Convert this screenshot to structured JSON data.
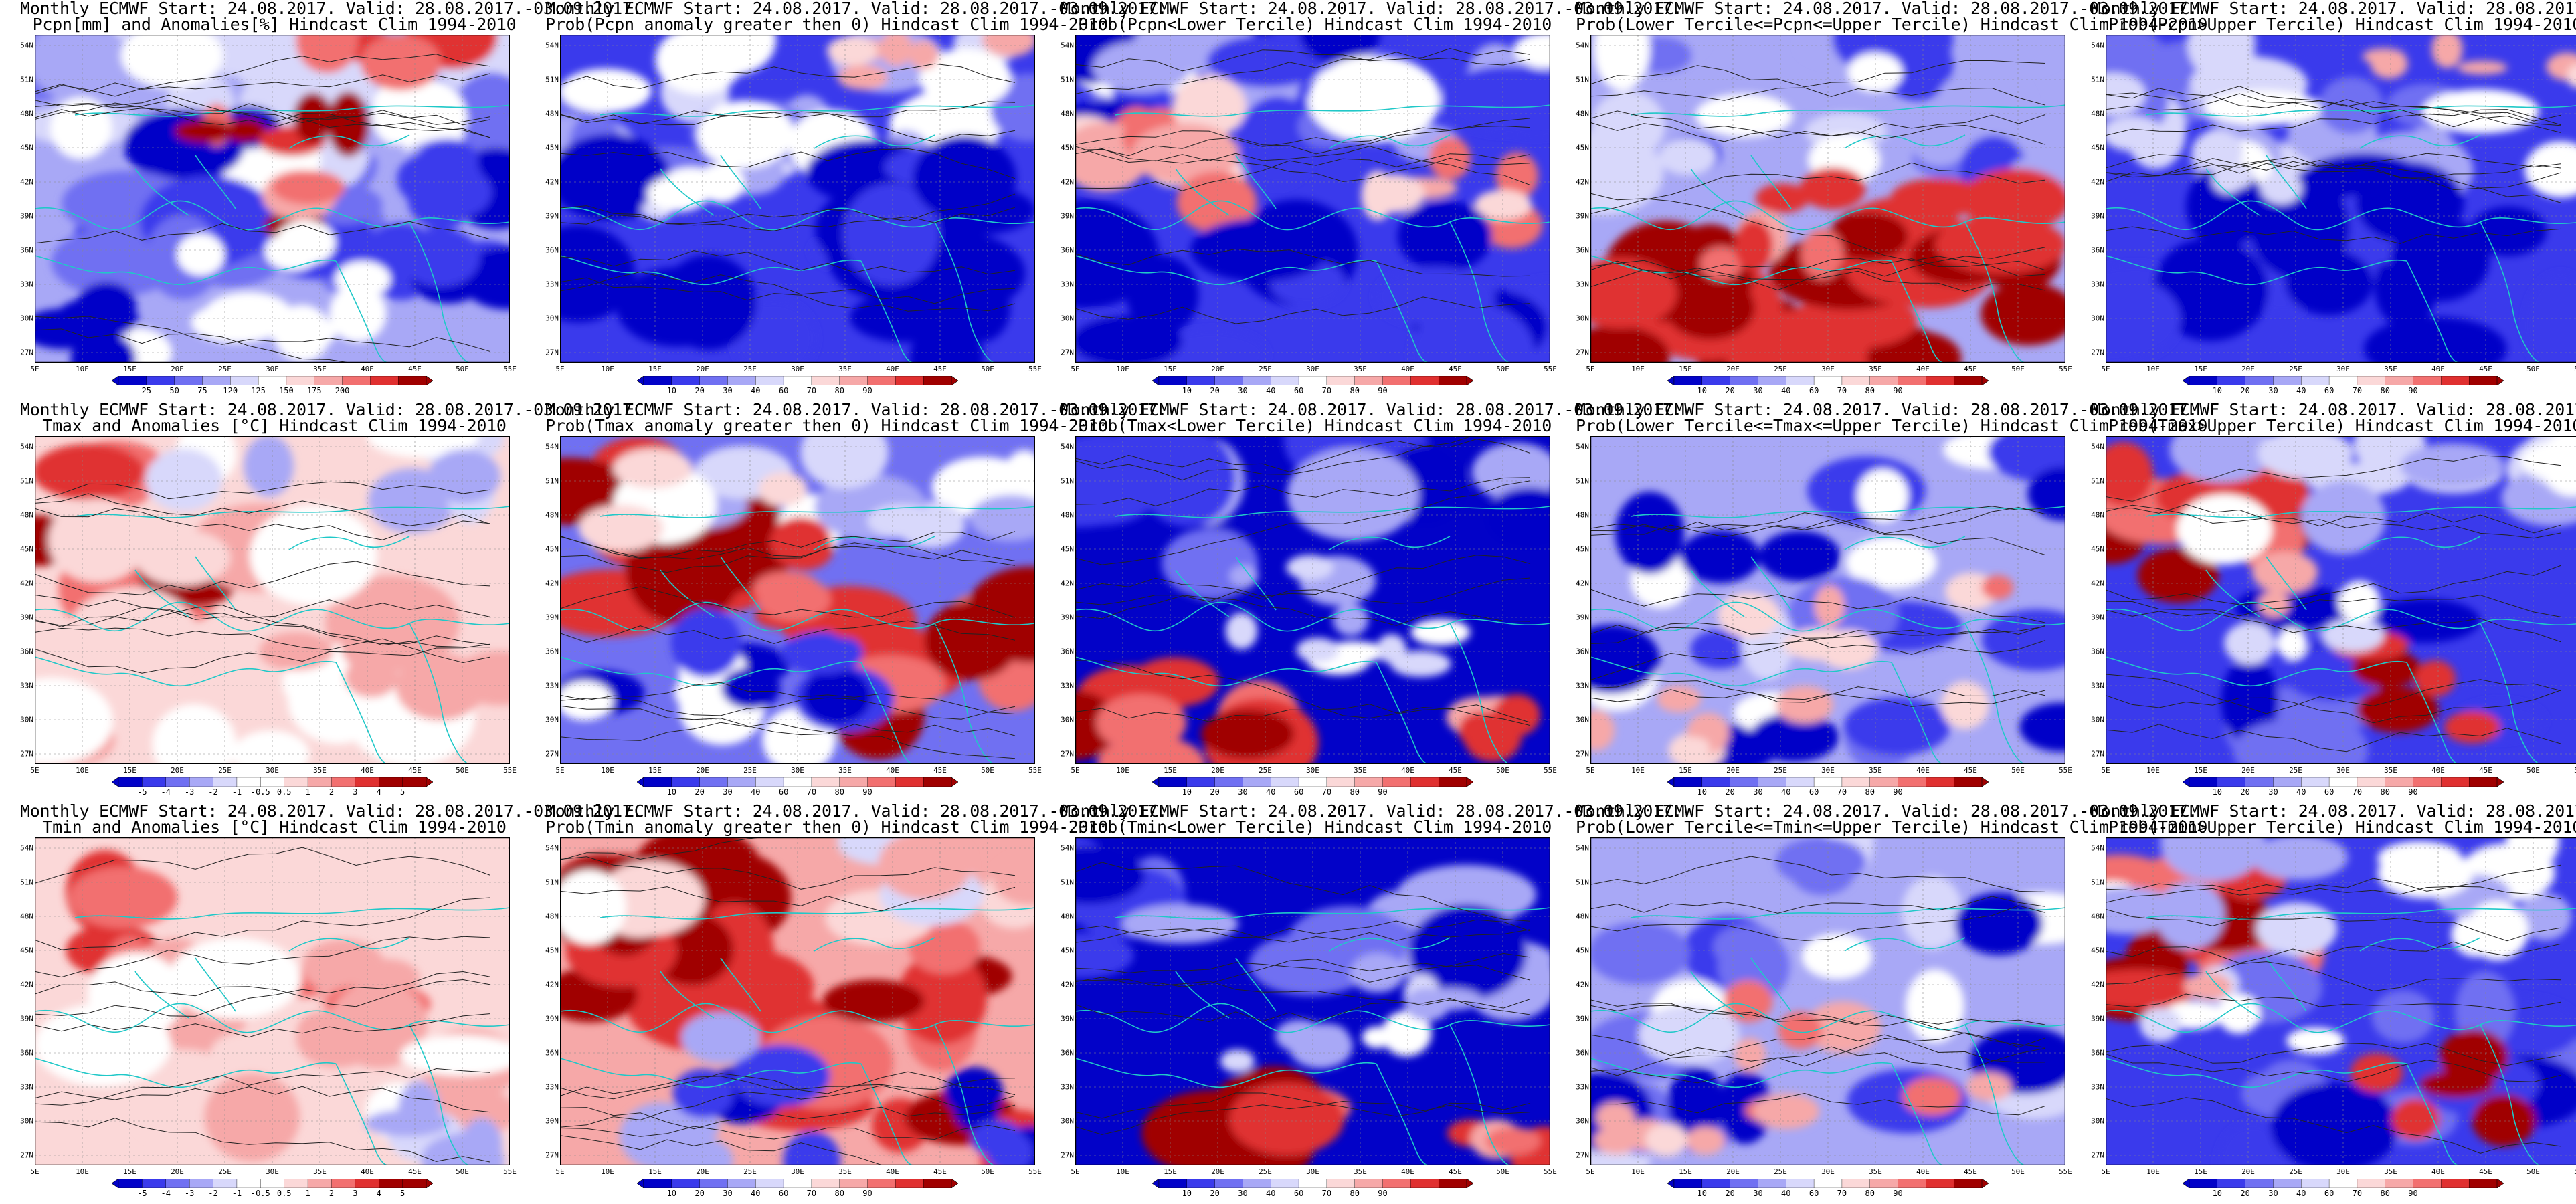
{
  "header": "Monthly ECMWF Start: 24.08.2017. Valid: 28.08.2017.-03.09.2017.",
  "lat_labels": [
    "54N",
    "51N",
    "48N",
    "45N",
    "42N",
    "39N",
    "36N",
    "33N",
    "30N",
    "27N"
  ],
  "lon_labels": [
    "5E",
    "10E",
    "15E",
    "20E",
    "25E",
    "30E",
    "35E",
    "40E",
    "45E",
    "50E",
    "55E"
  ],
  "colors": {
    "blue_dark": "#0202c8",
    "blue": "#3a3aec",
    "blue_mid": "#7070f2",
    "blue_light": "#a8a8f6",
    "blue_pale": "#d8d8fb",
    "white": "#ffffff",
    "red_pale": "#fbd8d8",
    "red_light": "#f6a8a8",
    "red_mid": "#f27070",
    "red": "#e03030",
    "red_dark": "#a00000",
    "contour": "#222222",
    "coast": "#20c8c8"
  },
  "colorbars": {
    "precip_anom": [
      "25",
      "50",
      "75",
      "120",
      "125",
      "150",
      "175",
      "200"
    ],
    "prob": [
      "10",
      "20",
      "30",
      "40",
      "60",
      "70",
      "80",
      "90"
    ],
    "temp_anom": [
      "-5",
      "-4",
      "-3",
      "-2",
      "-1",
      "-0.5",
      "0.5",
      "1",
      "2",
      "3",
      "4",
      "5"
    ]
  },
  "panels": [
    {
      "id": "r1c1",
      "row": 0,
      "col": 0,
      "subtitle": "Pcpn[mm] and Anomalies[%] Hindcast Clim 1994-2010",
      "colorbar": "precip_anom",
      "pattern": "pcpn_anom"
    },
    {
      "id": "r1c2",
      "row": 0,
      "col": 1,
      "subtitle": "Prob(Pcpn anomaly greater then 0) Hindcast Clim 1994-2010",
      "colorbar": "prob",
      "pattern": "blue_mostly"
    },
    {
      "id": "r1c3",
      "row": 0,
      "col": 2,
      "subtitle": "Prob(Pcpn<Lower Tercile) Hindcast Clim 1994-2010",
      "colorbar": "prob",
      "pattern": "pcpn_lower"
    },
    {
      "id": "r1c4",
      "row": 0,
      "col": 3,
      "subtitle": "Prob(Lower Tercile<=Pcpn<=Upper Tercile) Hindcast Clim 1994-2010",
      "colorbar": "prob",
      "pattern": "red_south"
    },
    {
      "id": "r1c5",
      "row": 0,
      "col": 4,
      "subtitle": "Prob(Pcpn>Upper Tercile) Hindcast Clim 1994-2010",
      "colorbar": "prob",
      "pattern": "blue_mostly"
    },
    {
      "id": "r2c1",
      "row": 1,
      "col": 0,
      "subtitle": "Tmax and Anomalies [°C] Hindcast Clim 1994-2010",
      "colorbar": "temp_anom",
      "pattern": "tanom"
    },
    {
      "id": "r2c2",
      "row": 1,
      "col": 1,
      "subtitle": "Prob(Tmax anomaly greater then 0) Hindcast Clim 1994-2010",
      "colorbar": "prob",
      "pattern": "red_west_east"
    },
    {
      "id": "r2c3",
      "row": 1,
      "col": 2,
      "subtitle": "Prob(Tmax<Lower Tercile) Hindcast Clim 1994-2010",
      "colorbar": "prob",
      "pattern": "blue_dominant_red_sw"
    },
    {
      "id": "r2c4",
      "row": 1,
      "col": 3,
      "subtitle": "Prob(Lower Tercile<=Tmax<=Upper Tercile) Hindcast Clim 1994-2010",
      "colorbar": "prob",
      "pattern": "mixed_blue"
    },
    {
      "id": "r2c5",
      "row": 1,
      "col": 4,
      "subtitle": "Prob(Tmax>Upper Tercile) Hindcast Clim 1994-2010",
      "colorbar": "prob",
      "pattern": "red_nw_blue"
    },
    {
      "id": "r3c1",
      "row": 2,
      "col": 0,
      "subtitle": "Tmin and Anomalies [°C] Hindcast Clim 1994-2010",
      "colorbar": "temp_anom",
      "pattern": "tanom2"
    },
    {
      "id": "r3c2",
      "row": 2,
      "col": 1,
      "subtitle": "Prob(Tmin anomaly greater then 0) Hindcast Clim 1994-2010",
      "colorbar": "prob",
      "pattern": "red_heavy"
    },
    {
      "id": "r3c3",
      "row": 2,
      "col": 2,
      "subtitle": "Prob(Tmin<Lower Tercile) Hindcast Clim 1994-2010",
      "colorbar": "prob",
      "pattern": "blue_dominant_red_sw"
    },
    {
      "id": "r3c4",
      "row": 2,
      "col": 3,
      "subtitle": "Prob(Lower Tercile<=Tmin<=Upper Tercile) Hindcast Clim 1994-2010",
      "colorbar": "prob",
      "pattern": "mixed_blue"
    },
    {
      "id": "r3c5",
      "row": 2,
      "col": 4,
      "subtitle": "Prob(Tmin>Upper Tercile) Hindcast Clim 1994-2010",
      "colorbar": "prob",
      "pattern": "red_nw_blue"
    }
  ]
}
